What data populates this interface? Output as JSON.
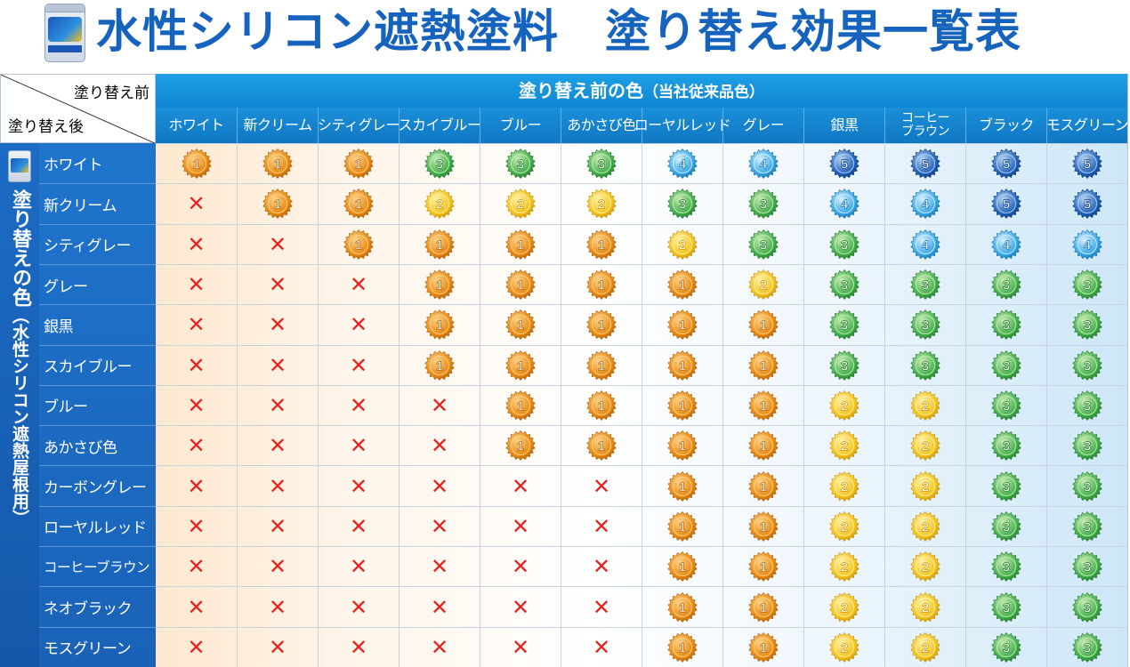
{
  "title": "水性シリコン遮熱塗料　塗り替え効果一覧表",
  "corner": {
    "before_label": "塗り替え前",
    "after_label": "塗り替え後"
  },
  "header": {
    "main": "塗り替え前の色",
    "sub": "（当社従来品色）"
  },
  "side_label": {
    "main": "塗り替えの色",
    "sub": "（水性シリコン遮熱屋根用）"
  },
  "columns": [
    "ホワイト",
    "新クリーム",
    "シティグレー",
    "スカイブルー",
    "ブルー",
    "あかさび色",
    "ローヤルレッド",
    "グレー",
    "銀黒",
    "コーヒー\nブラウン",
    "ブラック",
    "モスグリーン"
  ],
  "rows": [
    {
      "label": "ホワイト",
      "values": [
        1,
        1,
        1,
        3,
        3,
        3,
        4,
        4,
        5,
        5,
        5,
        5
      ]
    },
    {
      "label": "新クリーム",
      "values": [
        "x",
        1,
        1,
        2,
        2,
        2,
        3,
        3,
        4,
        4,
        5,
        5
      ]
    },
    {
      "label": "シティグレー",
      "values": [
        "x",
        "x",
        1,
        1,
        1,
        1,
        2,
        3,
        3,
        4,
        4,
        4
      ]
    },
    {
      "label": "グレー",
      "values": [
        "x",
        "x",
        "x",
        1,
        1,
        1,
        1,
        2,
        3,
        3,
        3,
        3
      ]
    },
    {
      "label": "銀黒",
      "values": [
        "x",
        "x",
        "x",
        1,
        1,
        1,
        1,
        1,
        3,
        3,
        3,
        3
      ]
    },
    {
      "label": "スカイブルー",
      "values": [
        "x",
        "x",
        "x",
        1,
        1,
        1,
        1,
        1,
        3,
        3,
        3,
        3
      ]
    },
    {
      "label": "ブルー",
      "values": [
        "x",
        "x",
        "x",
        "x",
        1,
        1,
        1,
        1,
        2,
        2,
        3,
        3
      ]
    },
    {
      "label": "あかさび色",
      "values": [
        "x",
        "x",
        "x",
        "x",
        1,
        1,
        1,
        1,
        2,
        2,
        3,
        3
      ]
    },
    {
      "label": "カーボングレー",
      "values": [
        "x",
        "x",
        "x",
        "x",
        "x",
        "x",
        1,
        1,
        2,
        2,
        3,
        3
      ]
    },
    {
      "label": "ローヤルレッド",
      "values": [
        "x",
        "x",
        "x",
        "x",
        "x",
        "x",
        1,
        1,
        2,
        2,
        3,
        3
      ]
    },
    {
      "label": "コーヒーブラウン",
      "values": [
        "x",
        "x",
        "x",
        "x",
        "x",
        "x",
        1,
        1,
        2,
        2,
        3,
        3
      ]
    },
    {
      "label": "ネオブラック",
      "values": [
        "x",
        "x",
        "x",
        "x",
        "x",
        "x",
        1,
        1,
        2,
        2,
        3,
        3
      ]
    },
    {
      "label": "モスグリーン",
      "values": [
        "x",
        "x",
        "x",
        "x",
        "x",
        "x",
        1,
        1,
        2,
        2,
        3,
        3
      ]
    }
  ],
  "cross_symbol": "✕",
  "colors": {
    "title": "#1663be",
    "cross": "#e52420",
    "medal_1": "#e8880f",
    "medal_2": "#f3c21a",
    "medal_3": "#3fae4a",
    "medal_4": "#34a6e6",
    "medal_5": "#1d5fb8"
  }
}
